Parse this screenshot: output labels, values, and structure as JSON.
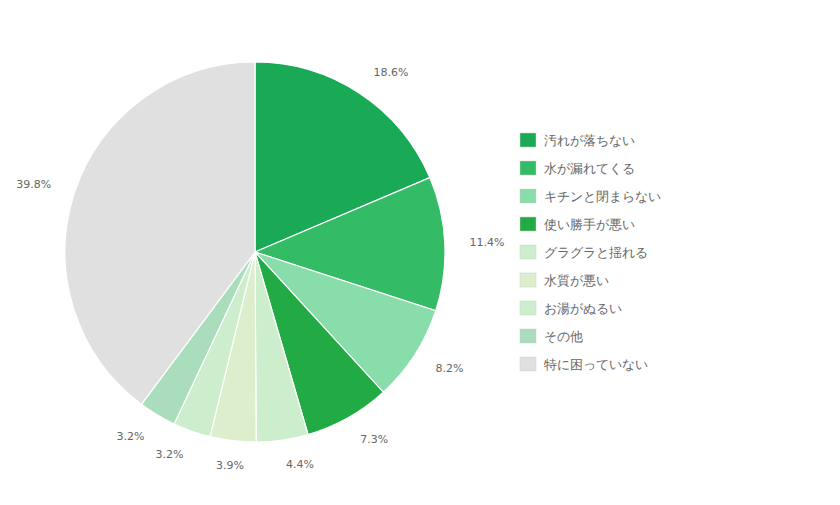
{
  "chart_data": {
    "type": "pie",
    "categories": [
      "汚れが落ちない",
      "水が漏れてくる",
      "キチンと閉まらない",
      "使い勝手が悪い",
      "グラグラと揺れる",
      "水質が悪い",
      "お湯がぬるい",
      "その他",
      "特に困っていない"
    ],
    "values": [
      18.6,
      11.4,
      8.2,
      7.3,
      4.4,
      3.9,
      3.2,
      3.2,
      39.8
    ],
    "value_labels": [
      "18.6%",
      "11.4%",
      "8.2%",
      "7.3%",
      "4.4%",
      "3.9%",
      "3.2%",
      "3.2%",
      "39.8%"
    ],
    "colors": [
      "#1aaa55",
      "#33bb66",
      "#88ddaa",
      "#22aa44",
      "#cceecc",
      "#ddeecc",
      "#cceecc",
      "#aaddbb",
      "#e0e0e0"
    ],
    "data_labels": true,
    "legend": "right"
  }
}
